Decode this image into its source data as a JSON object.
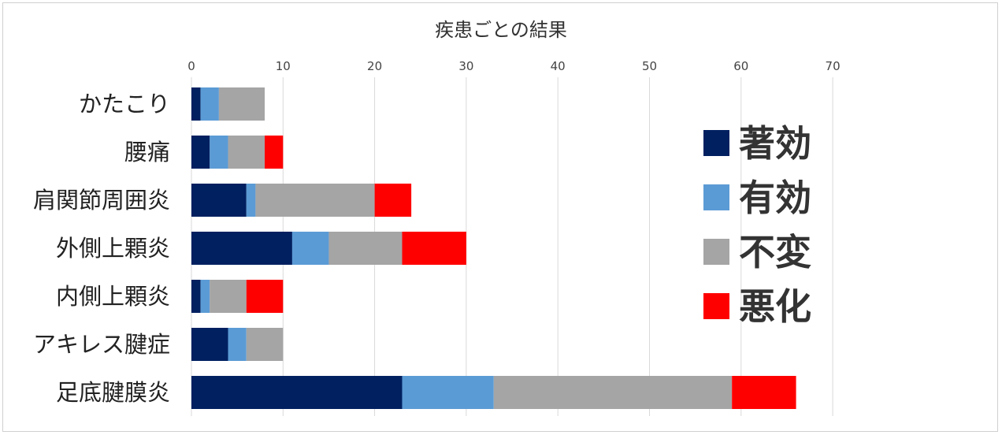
{
  "chart_data": {
    "type": "bar",
    "orientation": "horizontal",
    "stacked": true,
    "title": "疾患ごとの結果",
    "xlabel": "",
    "ylabel": "",
    "xlim": [
      0,
      70
    ],
    "xticks": [
      0,
      10,
      20,
      30,
      40,
      50,
      60,
      70
    ],
    "grid": true,
    "legend_position": "right",
    "categories": [
      "かたこり",
      "腰痛",
      "肩関節周囲炎",
      "外側上顆炎",
      "内側上顆炎",
      "アキレス腱症",
      "足底腱膜炎"
    ],
    "series": [
      {
        "name": "著効",
        "color": "#002060",
        "values": [
          1,
          2,
          6,
          11,
          1,
          4,
          23
        ]
      },
      {
        "name": "有効",
        "color": "#5b9bd5",
        "values": [
          2,
          2,
          1,
          4,
          1,
          2,
          10
        ]
      },
      {
        "name": "不変",
        "color": "#a5a5a5",
        "values": [
          5,
          4,
          13,
          8,
          4,
          4,
          26
        ]
      },
      {
        "name": "悪化",
        "color": "#ff0000",
        "values": [
          0,
          2,
          4,
          7,
          4,
          0,
          7
        ]
      }
    ]
  }
}
